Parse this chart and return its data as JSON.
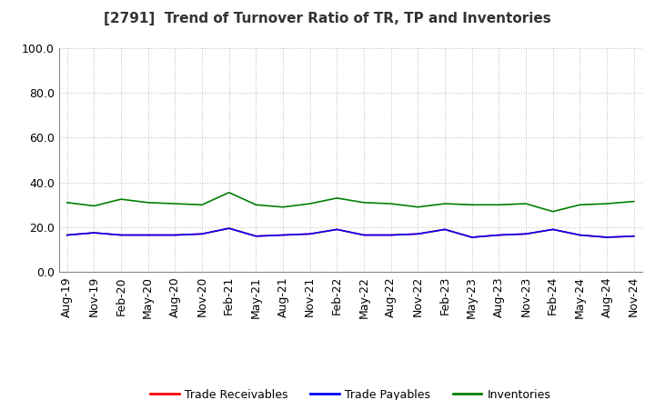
{
  "title": "[2791]  Trend of Turnover Ratio of TR, TP and Inventories",
  "x_labels": [
    "Aug-19",
    "Nov-19",
    "Feb-20",
    "May-20",
    "Aug-20",
    "Nov-20",
    "Feb-21",
    "May-21",
    "Aug-21",
    "Nov-21",
    "Feb-22",
    "May-22",
    "Aug-22",
    "Nov-22",
    "Feb-23",
    "May-23",
    "Aug-23",
    "Nov-23",
    "Feb-24",
    "May-24",
    "Aug-24",
    "Nov-24"
  ],
  "trade_receivables": [
    16.5,
    17.5,
    16.5,
    16.5,
    16.5,
    17.0,
    19.5,
    16.0,
    16.5,
    17.0,
    19.0,
    16.5,
    16.5,
    17.0,
    19.0,
    15.5,
    16.5,
    17.0,
    19.0,
    16.5,
    15.5,
    16.0
  ],
  "trade_payables": [
    16.5,
    17.5,
    16.5,
    16.5,
    16.5,
    17.0,
    19.5,
    16.0,
    16.5,
    17.0,
    19.0,
    16.5,
    16.5,
    17.0,
    19.0,
    15.5,
    16.5,
    17.0,
    19.0,
    16.5,
    15.5,
    16.0
  ],
  "inventories": [
    31.0,
    29.5,
    32.5,
    31.0,
    30.5,
    30.0,
    35.5,
    30.0,
    29.0,
    30.5,
    33.0,
    31.0,
    30.5,
    29.0,
    30.5,
    30.0,
    30.0,
    30.5,
    27.0,
    30.0,
    30.5,
    31.5
  ],
  "ylim": [
    0,
    100
  ],
  "yticks": [
    0.0,
    20.0,
    40.0,
    60.0,
    80.0,
    100.0
  ],
  "tr_color": "#ff0000",
  "tp_color": "#0000ff",
  "inv_color": "#008000",
  "legend_labels": [
    "Trade Receivables",
    "Trade Payables",
    "Inventories"
  ],
  "background_color": "#ffffff",
  "grid_color": "#bbbbbb",
  "title_fontsize": 11,
  "tick_fontsize": 9,
  "legend_fontsize": 9
}
